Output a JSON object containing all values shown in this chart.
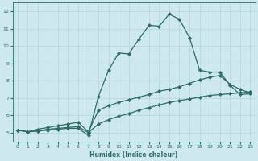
{
  "xlabel": "Humidex (Indice chaleur)",
  "xlim": [
    -0.5,
    23.5
  ],
  "ylim": [
    4.5,
    12.5
  ],
  "xticks": [
    0,
    1,
    2,
    3,
    4,
    5,
    6,
    7,
    8,
    9,
    10,
    11,
    12,
    13,
    14,
    15,
    16,
    17,
    18,
    19,
    20,
    21,
    22,
    23
  ],
  "yticks": [
    5,
    6,
    7,
    8,
    9,
    10,
    11,
    12
  ],
  "bg_color": "#cde8ee",
  "grid_color": "#b8d4da",
  "line_color": "#2e6b62",
  "series1_x": [
    0,
    1,
    2,
    3,
    4,
    5,
    6,
    7,
    8,
    9,
    10,
    11,
    12,
    13,
    14,
    15,
    16,
    17,
    18,
    19,
    20,
    21,
    22,
    23
  ],
  "series1_y": [
    5.15,
    5.05,
    5.1,
    5.15,
    5.2,
    5.25,
    5.25,
    4.85,
    7.1,
    8.6,
    9.6,
    9.55,
    10.4,
    11.2,
    11.15,
    11.85,
    11.55,
    10.5,
    8.6,
    8.5,
    8.5,
    7.75,
    7.2,
    7.25
  ],
  "series2_x": [
    0,
    1,
    2,
    3,
    4,
    5,
    6,
    7,
    8,
    9,
    10,
    11,
    12,
    13,
    14,
    15,
    16,
    17,
    18,
    19,
    20,
    21,
    22,
    23
  ],
  "series2_y": [
    5.15,
    5.05,
    5.2,
    5.3,
    5.4,
    5.5,
    5.6,
    5.05,
    6.3,
    6.55,
    6.75,
    6.9,
    7.05,
    7.2,
    7.4,
    7.5,
    7.65,
    7.85,
    8.05,
    8.2,
    8.3,
    7.8,
    7.5,
    7.3
  ],
  "series3_x": [
    0,
    1,
    2,
    3,
    4,
    5,
    6,
    7,
    8,
    9,
    10,
    11,
    12,
    13,
    14,
    15,
    16,
    17,
    18,
    19,
    20,
    21,
    22,
    23
  ],
  "series3_y": [
    5.15,
    5.05,
    5.1,
    5.2,
    5.25,
    5.3,
    5.35,
    5.0,
    5.5,
    5.75,
    5.95,
    6.1,
    6.3,
    6.45,
    6.6,
    6.75,
    6.85,
    6.95,
    7.05,
    7.15,
    7.2,
    7.25,
    7.3,
    7.35
  ],
  "marker": "D",
  "markersize": 2.2,
  "linewidth": 0.9
}
